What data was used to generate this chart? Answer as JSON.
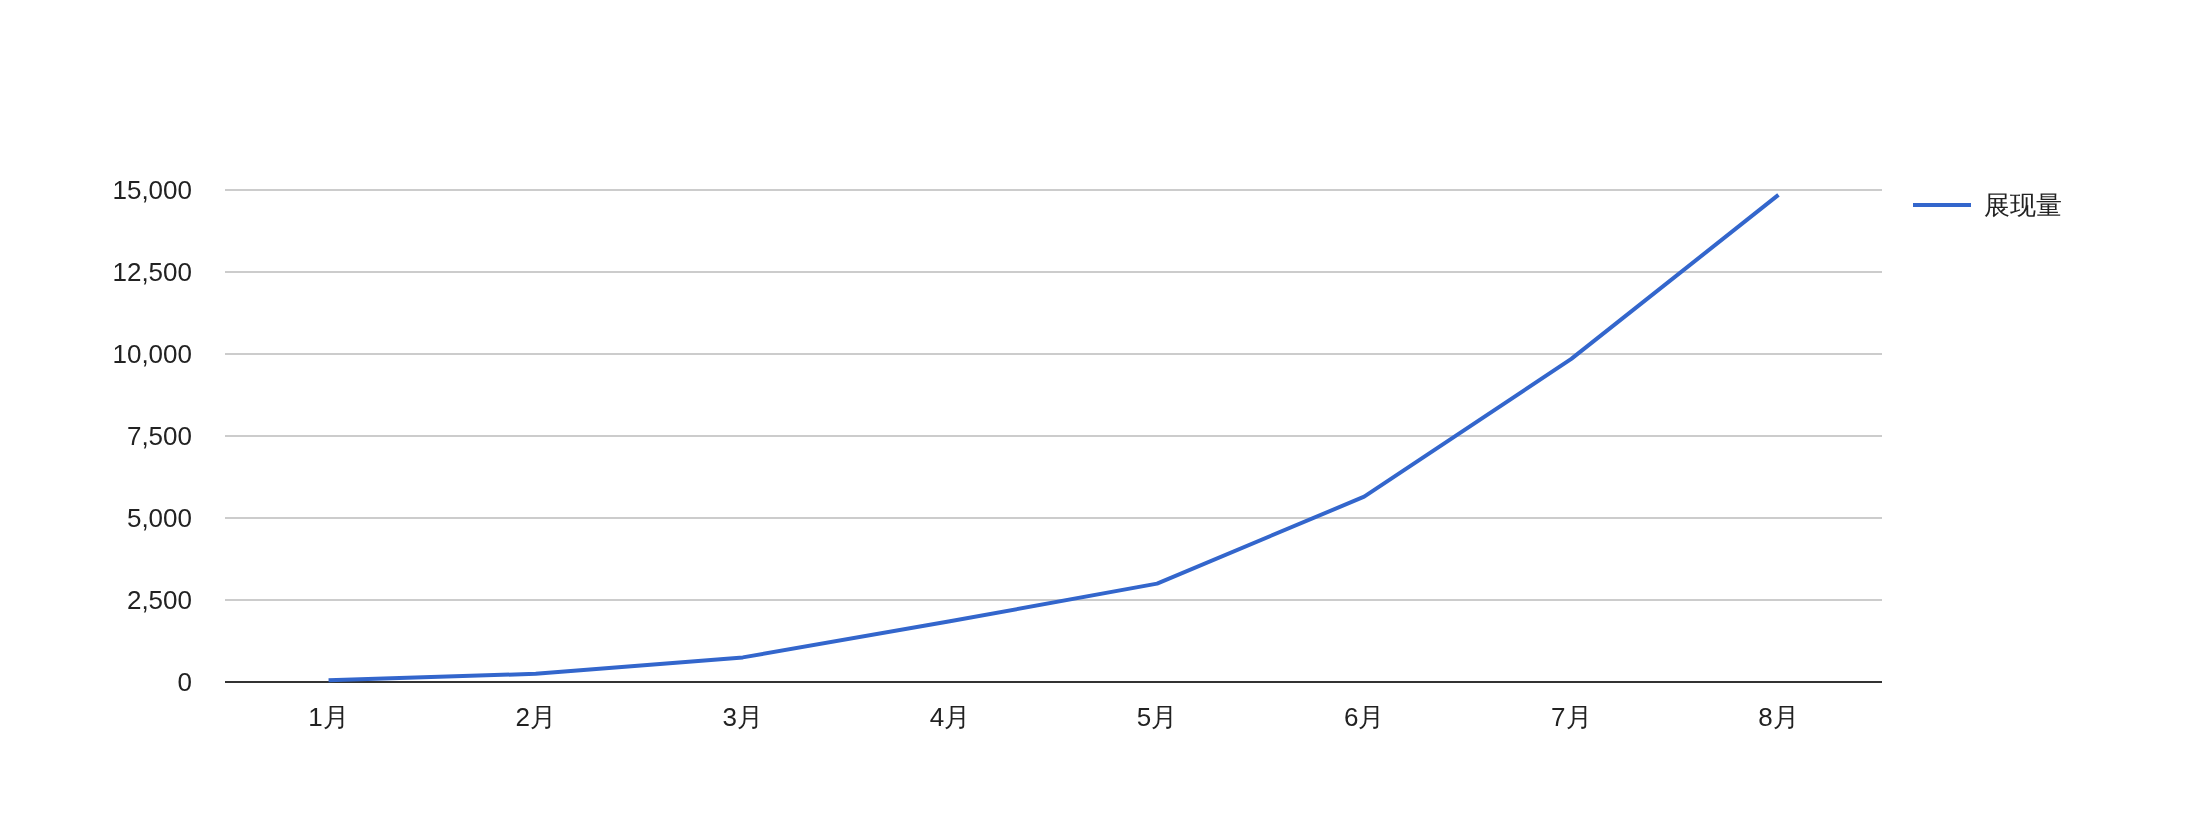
{
  "chart_data": {
    "type": "line",
    "categories": [
      "1月",
      "2月",
      "3月",
      "4月",
      "5月",
      "6月",
      "7月",
      "8月"
    ],
    "series": [
      {
        "name": "展现量",
        "color": "#3366cc",
        "values": [
          50,
          250,
          750,
          1850,
          3000,
          5650,
          9850,
          14850
        ]
      }
    ],
    "ylim": [
      0,
      15000
    ],
    "yticks": [
      0,
      {
        "value": 2500,
        "label": "2,500"
      },
      {
        "value": 5000,
        "label": "5,000"
      },
      {
        "value": 7500,
        "label": "7,500"
      },
      {
        "value": 10000,
        "label": "10,000"
      },
      {
        "value": 12500,
        "label": "12,500"
      },
      {
        "value": 15000,
        "label": "15,000"
      }
    ],
    "grid": "y",
    "legend": "top right",
    "marker": "none",
    "line_style": "solid"
  }
}
